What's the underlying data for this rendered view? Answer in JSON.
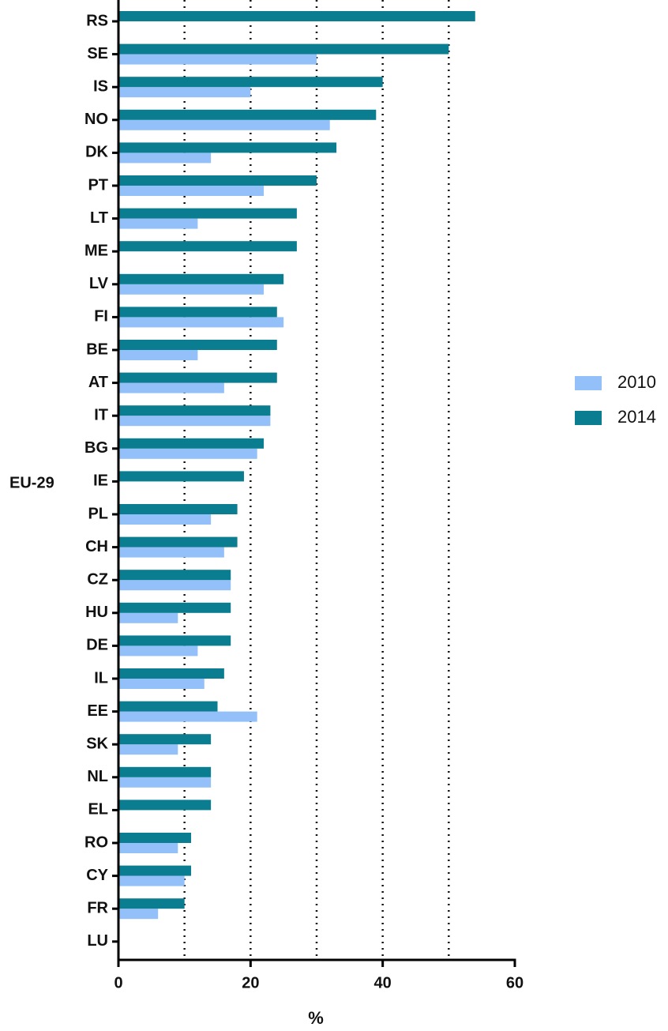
{
  "chart_data": {
    "type": "hbar",
    "y_label": "EU-29",
    "x_label": "%",
    "categories": [
      "RS",
      "SE",
      "IS",
      "NO",
      "DK",
      "PT",
      "LT",
      "ME",
      "LV",
      "FI",
      "BE",
      "AT",
      "IT",
      "BG",
      "IE",
      "PL",
      "CH",
      "CZ",
      "HU",
      "DE",
      "IL",
      "EE",
      "SK",
      "NL",
      "EL",
      "RO",
      "CY",
      "FR",
      "LU"
    ],
    "series": [
      {
        "name": "2010",
        "color": "#93c0f8",
        "values": [
          null,
          30,
          20,
          32,
          14,
          22,
          12,
          null,
          22,
          25,
          12,
          16,
          23,
          21,
          null,
          14,
          16,
          17,
          9,
          12,
          13,
          21,
          9,
          14,
          null,
          9,
          10,
          6,
          null
        ]
      },
      {
        "name": "2014",
        "color": "#0b7d91",
        "values": [
          54,
          50,
          40,
          39,
          33,
          30,
          27,
          27,
          25,
          24,
          24,
          24,
          23,
          22,
          19,
          18,
          18,
          17,
          17,
          17,
          16,
          15,
          14,
          14,
          14,
          11,
          11,
          10,
          null
        ]
      }
    ],
    "xlim": [
      0,
      60
    ],
    "xticks": [
      0,
      20,
      40,
      60
    ],
    "grid_x": [
      10,
      20,
      30,
      40,
      50
    ],
    "legend": "right"
  }
}
